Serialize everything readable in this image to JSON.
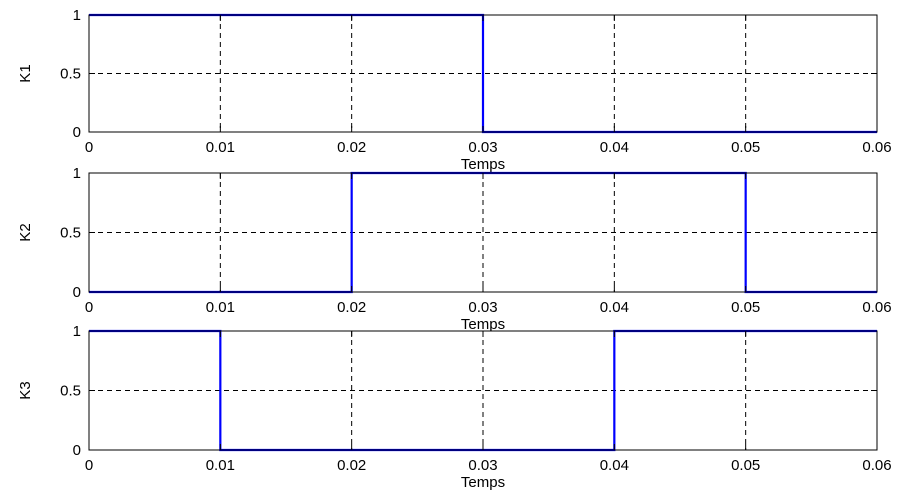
{
  "chart_data": [
    {
      "type": "line",
      "ylabel": "K1",
      "xlabel": "Temps",
      "xlim": [
        0,
        0.06
      ],
      "ylim": [
        0,
        1
      ],
      "xticks": [
        "0",
        "0.01",
        "0.02",
        "0.03",
        "0.04",
        "0.05",
        "0.06"
      ],
      "yticks": [
        "0",
        "0.5",
        "1"
      ],
      "grid": true,
      "grid_style": "dashed",
      "line_color": "#0000ff",
      "series": [
        {
          "x": [
            0,
            0.03,
            0.03,
            0.06
          ],
          "y": [
            1,
            1,
            0,
            0
          ]
        }
      ]
    },
    {
      "type": "line",
      "ylabel": "K2",
      "xlabel": "Temps",
      "xlim": [
        0,
        0.06
      ],
      "ylim": [
        0,
        1
      ],
      "xticks": [
        "0",
        "0.01",
        "0.02",
        "0.03",
        "0.04",
        "0.05",
        "0.06"
      ],
      "yticks": [
        "0",
        "0.5",
        "1"
      ],
      "grid": true,
      "grid_style": "dashed",
      "line_color": "#0000ff",
      "series": [
        {
          "x": [
            0,
            0.02,
            0.02,
            0.05,
            0.05,
            0.06
          ],
          "y": [
            0,
            0,
            1,
            1,
            0,
            0
          ]
        }
      ]
    },
    {
      "type": "line",
      "ylabel": "K3",
      "xlabel": "Temps",
      "xlim": [
        0,
        0.06
      ],
      "ylim": [
        0,
        1
      ],
      "xticks": [
        "0",
        "0.01",
        "0.02",
        "0.03",
        "0.04",
        "0.05",
        "0.06"
      ],
      "yticks": [
        "0",
        "0.5",
        "1"
      ],
      "grid": true,
      "grid_style": "dashed",
      "line_color": "#0000ff",
      "series": [
        {
          "x": [
            0,
            0.01,
            0.01,
            0.04,
            0.04,
            0.06
          ],
          "y": [
            1,
            1,
            0,
            0,
            1,
            1
          ]
        }
      ]
    }
  ]
}
